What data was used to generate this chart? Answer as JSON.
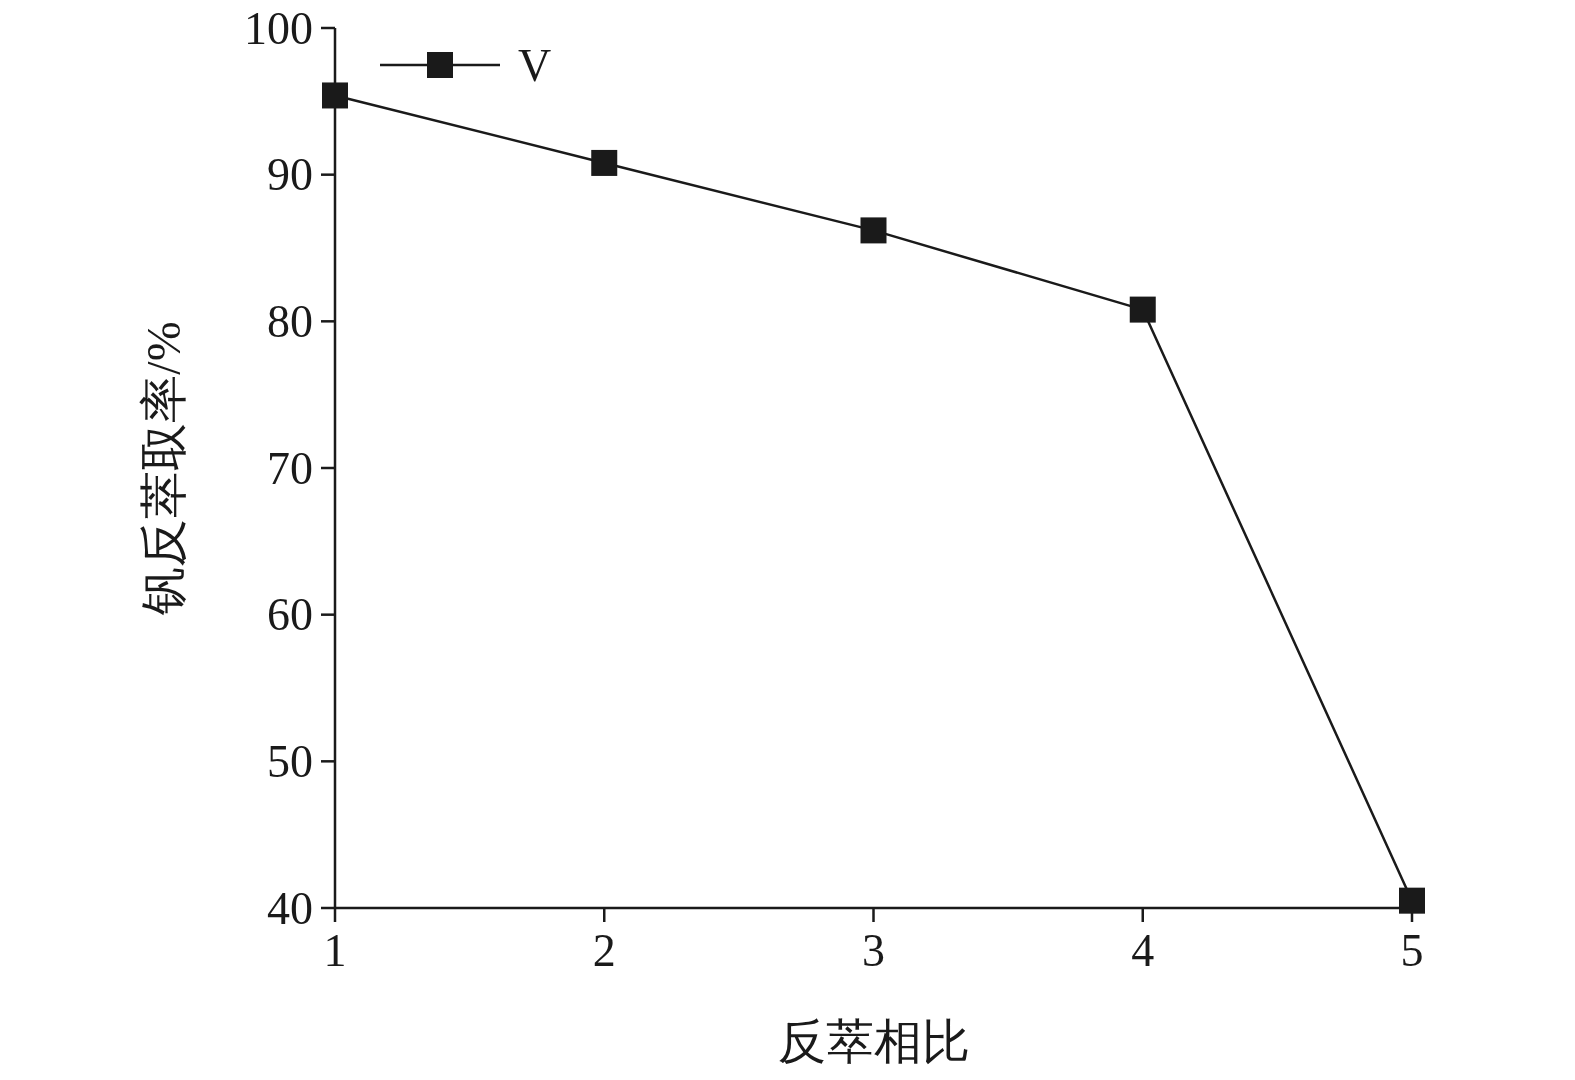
{
  "chart_data": {
    "type": "line",
    "xlabel": "反萃相比",
    "ylabel": "钒反萃取率/%",
    "x": [
      1,
      2,
      3,
      4,
      5
    ],
    "series": [
      {
        "name": "V",
        "color": "#1a1a1a",
        "values": [
          95.4,
          90.8,
          86.2,
          80.8,
          40.5
        ]
      }
    ],
    "xlim": [
      1,
      5
    ],
    "xticks": [
      1,
      2,
      3,
      4,
      5
    ],
    "ylim": [
      40,
      100
    ],
    "yticks": [
      40,
      50,
      60,
      70,
      80,
      90,
      100
    ],
    "legend": "top left",
    "marker": "square",
    "line_style": "solid",
    "grid": false
  }
}
